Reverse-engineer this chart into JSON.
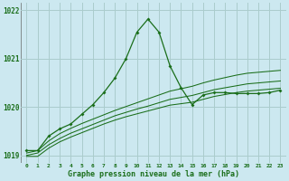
{
  "bg_color": "#cce8f0",
  "grid_color": "#aacccc",
  "line_color": "#1a6e1a",
  "x_values": [
    0,
    1,
    2,
    3,
    4,
    5,
    6,
    7,
    8,
    9,
    10,
    11,
    12,
    13,
    14,
    15,
    16,
    17,
    18,
    19,
    20,
    21,
    22,
    23
  ],
  "line1": [
    1019.1,
    1019.1,
    1019.4,
    1019.55,
    1019.65,
    1019.85,
    1020.05,
    1020.3,
    1020.6,
    1021.0,
    1021.55,
    1021.82,
    1021.55,
    1020.85,
    1020.4,
    1020.05,
    1020.25,
    1020.3,
    1020.3,
    1020.28,
    1020.28,
    1020.28,
    1020.3,
    1020.35
  ],
  "line2": [
    1019.05,
    1019.1,
    1019.3,
    1019.45,
    1019.56,
    1019.66,
    1019.75,
    1019.84,
    1019.93,
    1020.01,
    1020.09,
    1020.17,
    1020.25,
    1020.33,
    1020.38,
    1020.43,
    1020.5,
    1020.56,
    1020.61,
    1020.66,
    1020.7,
    1020.72,
    1020.74,
    1020.76
  ],
  "line3": [
    1019.0,
    1019.05,
    1019.22,
    1019.35,
    1019.46,
    1019.55,
    1019.64,
    1019.73,
    1019.82,
    1019.89,
    1019.96,
    1020.02,
    1020.09,
    1020.16,
    1020.2,
    1020.24,
    1020.3,
    1020.36,
    1020.4,
    1020.44,
    1020.48,
    1020.5,
    1020.52,
    1020.54
  ],
  "line4": [
    1018.98,
    1018.98,
    1019.15,
    1019.28,
    1019.38,
    1019.47,
    1019.56,
    1019.65,
    1019.73,
    1019.8,
    1019.86,
    1019.92,
    1019.98,
    1020.04,
    1020.07,
    1020.1,
    1020.16,
    1020.22,
    1020.26,
    1020.3,
    1020.33,
    1020.35,
    1020.37,
    1020.39
  ],
  "ylim": [
    1018.85,
    1022.15
  ],
  "yticks": [
    1019,
    1020,
    1021,
    1022
  ],
  "xlabel": "Graphe pression niveau de la mer (hPa)",
  "figsize": [
    3.2,
    2.0
  ],
  "dpi": 100
}
